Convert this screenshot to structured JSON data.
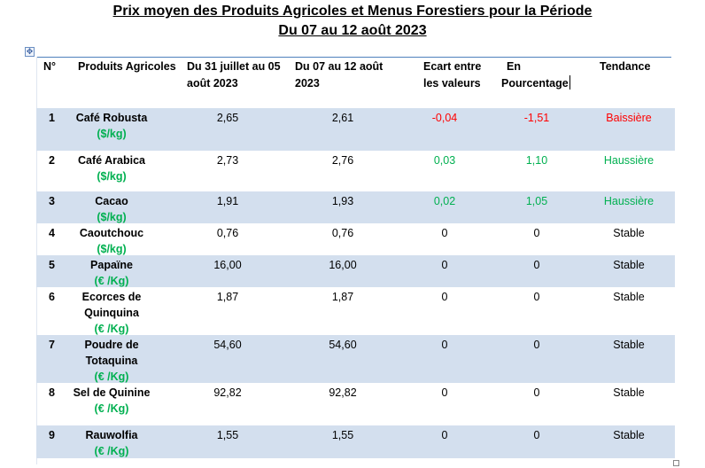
{
  "title_line1": "Prix moyen des Produits Agricoles et Menus Forestiers pour la Période",
  "title_line2": "Du 07 au 12 août 2023",
  "headers": {
    "num": "N°",
    "product": "Produits Agricoles",
    "period1_line1": "Du 31  juillet au 05",
    "period1_line2": "août 2023",
    "period2_line1": "Du 07  au 12 août",
    "period2_line2": "2023",
    "ecart_line1": "Ecart entre",
    "ecart_line2": "les valeurs",
    "pct_line1": "En",
    "pct_line2": "Pourcentage",
    "trend": "Tendance"
  },
  "colors": {
    "green": "#00b050",
    "red": "#ff0000",
    "band": "#d3dfee",
    "header_line": "#4f81bd"
  },
  "rows": [
    {
      "num": "1",
      "product_lines": [
        "Café Robusta"
      ],
      "unit": "($/kg)",
      "v1": "2,65",
      "v2": "2,61",
      "ecart": "-0,04",
      "pct": "-1,51",
      "trend": "Baissière",
      "color": "red"
    },
    {
      "num": "2",
      "product_lines": [
        "Café Arabica"
      ],
      "unit": "($/kg)",
      "v1": "2,73",
      "v2": "2,76",
      "ecart": "0,03",
      "pct": "1,10",
      "trend": "Haussière",
      "color": "green"
    },
    {
      "num": "3",
      "product_lines": [
        "Cacao"
      ],
      "unit": "($/kg)",
      "v1": "1,91",
      "v2": "1,93",
      "ecart": "0,02",
      "pct": "1,05",
      "trend": "Haussière",
      "color": "green"
    },
    {
      "num": "4",
      "product_lines": [
        "Caoutchouc"
      ],
      "unit": "($/kg)",
      "v1": "0,76",
      "v2": "0,76",
      "ecart": "0",
      "pct": "0",
      "trend": "Stable",
      "color": "black"
    },
    {
      "num": "5",
      "product_lines": [
        "Papaïne"
      ],
      "unit": "(€ /Kg)",
      "v1": "16,00",
      "v2": "16,00",
      "ecart": "0",
      "pct": "0",
      "trend": "Stable",
      "color": "black"
    },
    {
      "num": "6",
      "product_lines": [
        "Ecorces de",
        "Quinquina"
      ],
      "unit": "(€ /Kg)",
      "v1": "1,87",
      "v2": "1,87",
      "ecart": "0",
      "pct": "0",
      "trend": "Stable",
      "color": "black"
    },
    {
      "num": "7",
      "product_lines": [
        "Poudre de",
        "Totaquina"
      ],
      "unit": "(€ /Kg)",
      "v1": "54,60",
      "v2": "54,60",
      "ecart": "0",
      "pct": "0",
      "trend": "Stable",
      "color": "black"
    },
    {
      "num": "8",
      "product_lines": [
        "Sel de Quinine"
      ],
      "unit": "(€ /Kg)",
      "v1": "92,82",
      "v2": "92,82",
      "ecart": "0",
      "pct": "0",
      "trend": "Stable",
      "color": "black"
    },
    {
      "num": "9",
      "product_lines": [
        "Rauwolfia"
      ],
      "unit": "(€ /Kg)",
      "v1": "1,55",
      "v2": "1,55",
      "ecart": "0",
      "pct": "0",
      "trend": "Stable",
      "color": "black"
    }
  ]
}
